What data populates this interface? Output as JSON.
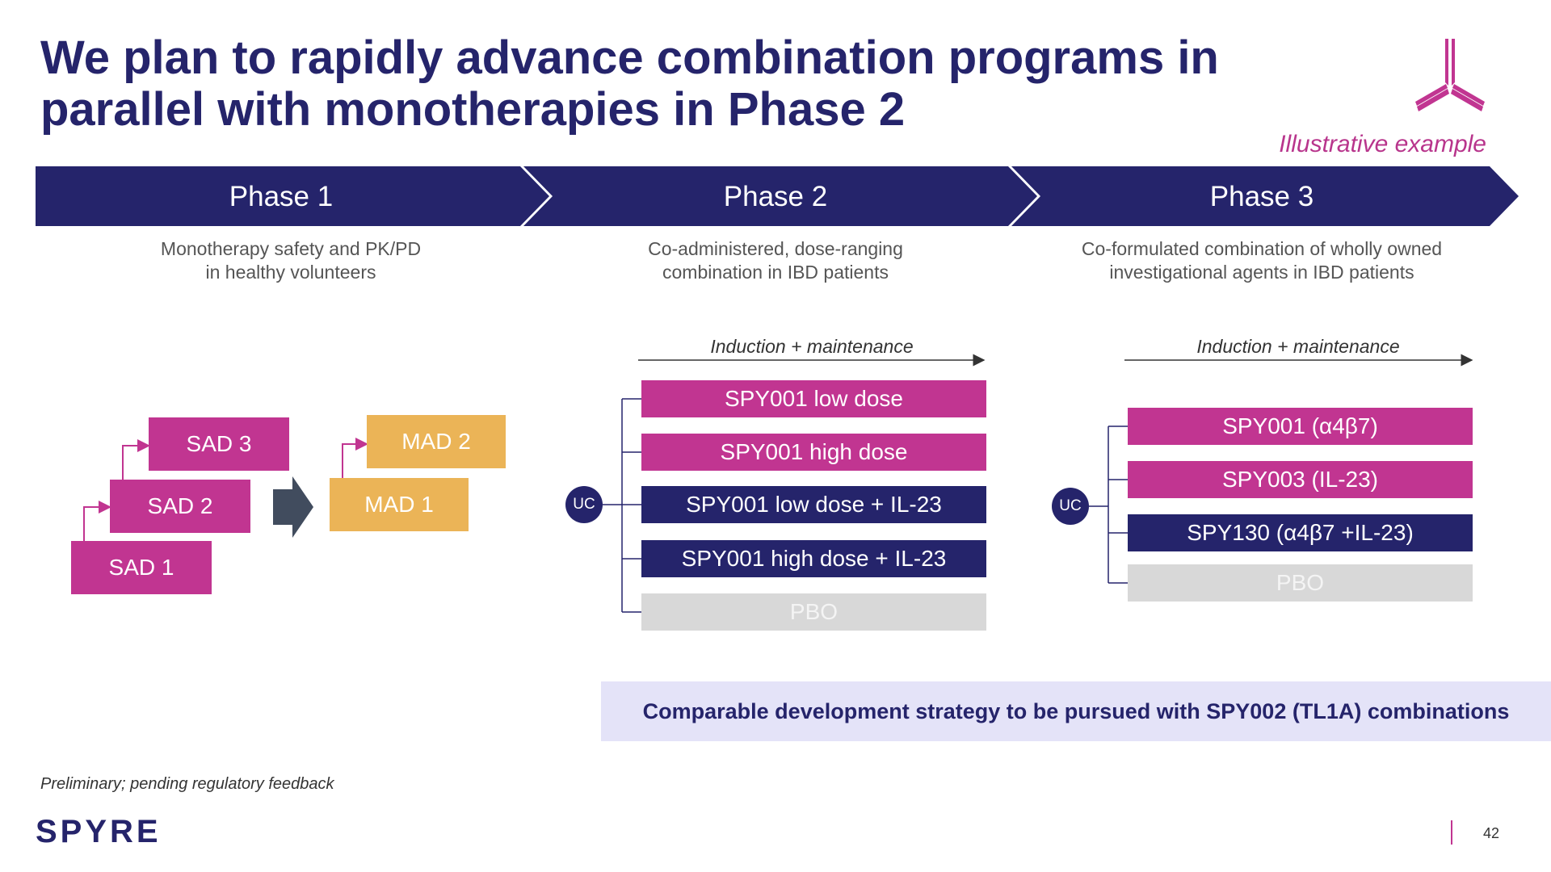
{
  "title": "We plan to rapidly advance combination programs in parallel with monotherapies in Phase 2",
  "illustrative": "Illustrative example",
  "phases": [
    {
      "label": "Phase 1",
      "desc1": "Monotherapy safety and PK/PD",
      "desc2": "in healthy volunteers"
    },
    {
      "label": "Phase 2",
      "desc1": "Co-administered, dose-ranging",
      "desc2": "combination in IBD patients"
    },
    {
      "label": "Phase 3",
      "desc1": "Co-formulated combination of wholly owned",
      "desc2": "investigational agents in IBD patients"
    }
  ],
  "phase1": {
    "sad": [
      "SAD 1",
      "SAD 2",
      "SAD 3"
    ],
    "mad": [
      "MAD 1",
      "MAD 2"
    ]
  },
  "phase2": {
    "induction": "Induction + maintenance",
    "uc": "UC",
    "arms": [
      "SPY001 low dose",
      "SPY001 high dose",
      "SPY001 low dose + IL-23",
      "SPY001 high dose + IL-23",
      "PBO"
    ]
  },
  "phase3": {
    "induction": "Induction + maintenance",
    "uc": "UC",
    "arms": [
      "SPY001 (α4β7)",
      "SPY003 (IL-23)",
      "SPY130 (α4β7 +IL-23)",
      "PBO"
    ]
  },
  "banner": "Comparable development strategy to be pursued with SPY002 (TL1A) combinations",
  "footnote": "Preliminary; pending regulatory feedback",
  "logo": "SPYRE",
  "page_number": "42",
  "colors": {
    "navy": "#25246b",
    "magenta": "#c13591",
    "gold": "#ebb457",
    "grey": "#d8d8d8",
    "banner": "#e4e3f8"
  }
}
